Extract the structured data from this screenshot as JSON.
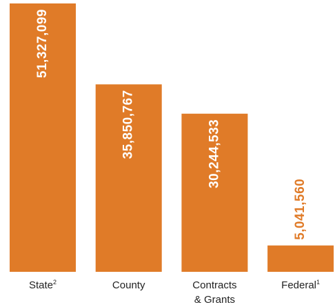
{
  "chart_data": {
    "type": "bar",
    "categories": [
      "State",
      "County",
      "Contracts & Grants",
      "Federal"
    ],
    "category_notes": [
      "2",
      null,
      null,
      "1"
    ],
    "values": [
      51327099,
      35850767,
      30244533,
      5041560
    ],
    "value_labels": [
      "51,327,099",
      "35,850,767",
      "30,244,533",
      "5,041,560"
    ],
    "color": "#e07b28"
  }
}
